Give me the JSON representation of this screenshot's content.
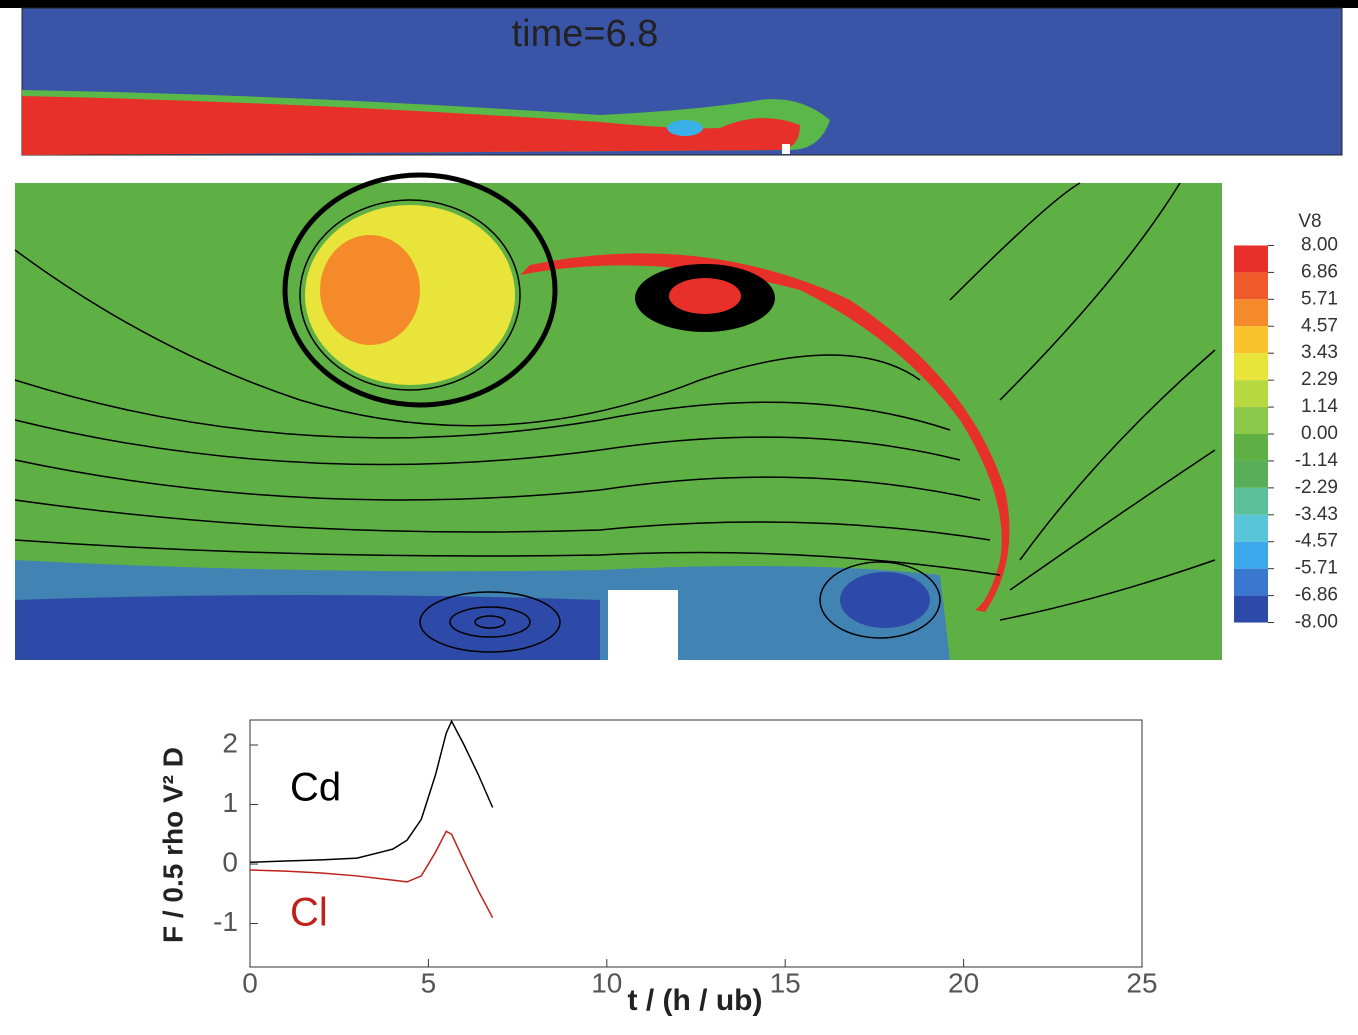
{
  "snapshot": {
    "title": "time=6.8"
  },
  "colorbar": {
    "title": "V8",
    "ticks": [
      {
        "value": 8,
        "label": "8.00"
      },
      {
        "value": 6.86,
        "label": "6.86"
      },
      {
        "value": 5.71,
        "label": "5.71"
      },
      {
        "value": 4.57,
        "label": "4.57"
      },
      {
        "value": 3.43,
        "label": "3.43"
      },
      {
        "value": 2.29,
        "label": "2.29"
      },
      {
        "value": 1.14,
        "label": "1.14"
      },
      {
        "value": 0,
        "label": "0.00"
      },
      {
        "value": -1.14,
        "label": "-1.14"
      },
      {
        "value": -2.29,
        "label": "-2.29"
      },
      {
        "value": -3.43,
        "label": "-3.43"
      },
      {
        "value": -4.57,
        "label": "-4.57"
      },
      {
        "value": -5.71,
        "label": "-5.71"
      },
      {
        "value": -6.86,
        "label": "-6.86"
      },
      {
        "value": -8,
        "label": "-8.00"
      }
    ],
    "colors": [
      "#e8302a",
      "#ef5a2a",
      "#f48a2a",
      "#f9c22a",
      "#e8e43a",
      "#b8d840",
      "#8cc84a",
      "#5fb044",
      "#5aae5a",
      "#5bbf9a",
      "#58c6d8",
      "#3aa8ea",
      "#3a78d0",
      "#2d4aa8"
    ]
  },
  "chart_data": {
    "type": "line",
    "xlabel": "t / (h / ub)",
    "ylabel": "F / 0.5 rho V² D",
    "xlim": [
      0,
      25
    ],
    "ylim": [
      -1.73,
      2.42
    ],
    "xticks": [
      0,
      5,
      10,
      15,
      20,
      25
    ],
    "yticks": [
      -1,
      0,
      1,
      2
    ],
    "x": [
      0,
      1,
      2,
      3,
      4,
      4.4,
      4.8,
      5.2,
      5.5,
      5.65,
      6,
      6.4,
      6.8
    ],
    "series": [
      {
        "name": "Cd",
        "color": "#000000",
        "values": [
          0.03,
          0.05,
          0.07,
          0.1,
          0.25,
          0.4,
          0.75,
          1.5,
          2.2,
          2.4,
          2.0,
          1.5,
          0.95
        ]
      },
      {
        "name": "Cl",
        "color": "#c0201a",
        "values": [
          -0.1,
          -0.12,
          -0.15,
          -0.2,
          -0.27,
          -0.3,
          -0.2,
          0.2,
          0.55,
          0.5,
          0.05,
          -0.45,
          -0.9
        ]
      }
    ]
  }
}
